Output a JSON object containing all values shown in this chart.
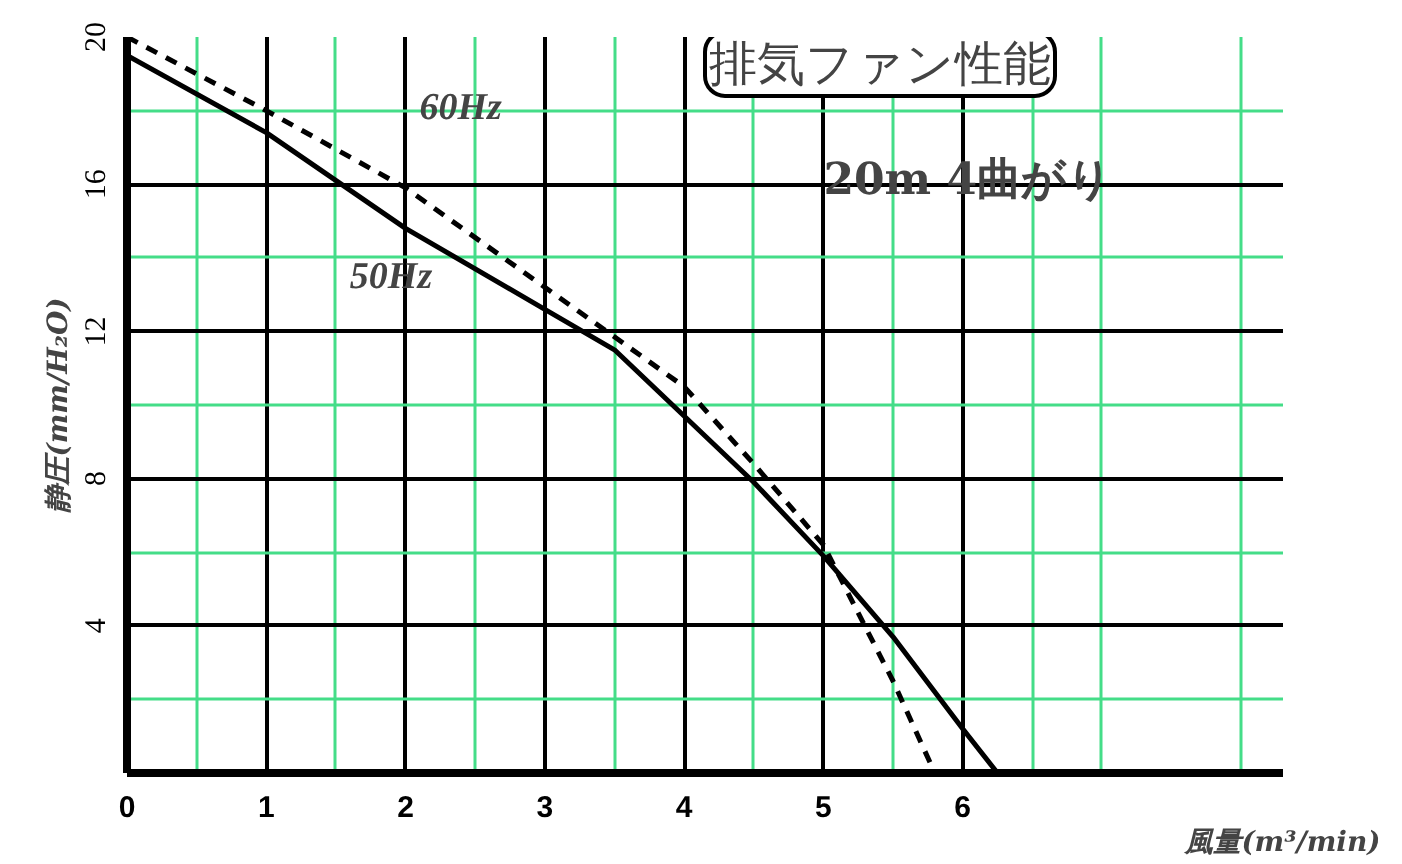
{
  "chart_data": {
    "type": "line",
    "title": "排気ファン性能",
    "subtitle": "20m 4曲がり",
    "xlabel": "風量(m³/min)",
    "ylabel": "静圧(mm/H₂O)",
    "xlim": [
      0,
      8.3
    ],
    "ylim": [
      0,
      20
    ],
    "xticks": [
      0,
      {
        "value": 0.5,
        "label": null
      },
      1,
      {
        "value": 1.5,
        "label": null
      },
      2,
      {
        "value": 2.5,
        "label": null
      },
      3,
      {
        "value": 3.5,
        "label": null
      },
      4,
      {
        "value": 4.5,
        "label": null
      },
      5,
      {
        "value": 5.5,
        "label": null
      },
      6,
      {
        "value": 6.5,
        "label": null
      },
      {
        "value": 7,
        "label": null
      },
      {
        "value": 8,
        "label": null
      }
    ],
    "yticks": [
      {
        "value": 0,
        "label": null
      },
      {
        "value": 2,
        "label": null
      },
      4,
      {
        "value": 6,
        "label": null
      },
      8,
      {
        "value": 10,
        "label": null
      },
      12,
      {
        "value": 14,
        "label": null
      },
      16,
      {
        "value": 18,
        "label": null
      },
      20
    ],
    "grid": true,
    "series": [
      {
        "name": "60Hz",
        "color": "#000000",
        "line_style": "dashed",
        "x": [
          0,
          1,
          2,
          3,
          4,
          4.5,
          5,
          5.5,
          5.8
        ],
        "values": [
          20,
          18,
          15.9,
          13.2,
          10.5,
          8.4,
          6.2,
          2.5,
          0
        ]
      },
      {
        "name": "50Hz",
        "color": "#000000",
        "line_style": "solid",
        "x": [
          0,
          1,
          2,
          3,
          3.5,
          4,
          4.5,
          5,
          5.5,
          6,
          6.25
        ],
        "values": [
          19.5,
          17.4,
          14.8,
          12.6,
          11.5,
          9.7,
          7.9,
          5.9,
          3.7,
          1.2,
          0
        ]
      }
    ]
  }
}
